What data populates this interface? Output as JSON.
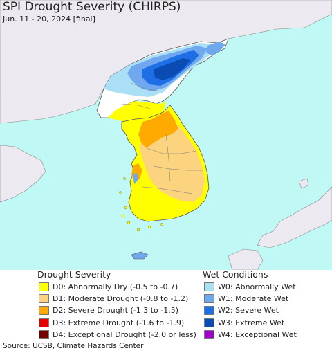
{
  "title": "SPI Drought Severity (CHIRPS)",
  "subtitle": "Jun. 11 - 20, 2024 [final]",
  "legend": {
    "drought_title": "Drought Severity",
    "drought": [
      {
        "label": "D0: Abnormally Dry (-0.5 to -0.7)",
        "color": "#ffff00"
      },
      {
        "label": "D1: Moderate Drought (-0.8 to -1.2)",
        "color": "#fcd37f"
      },
      {
        "label": "D2: Severe Drought (-1.3 to -1.5)",
        "color": "#ffaa00"
      },
      {
        "label": "D3: Extreme Drought (-1.6 to -1.9)",
        "color": "#e60000"
      },
      {
        "label": "D4: Exceptional Drought (-2.0 or less)",
        "color": "#730000"
      }
    ],
    "wet_title": "Wet Conditions",
    "wet": [
      {
        "label": "W0: Abnormally Wet",
        "color": "#aadff5"
      },
      {
        "label": "W1: Moderate Wet",
        "color": "#6fa8ee"
      },
      {
        "label": "W2: Severe Wet",
        "color": "#1e6fe6"
      },
      {
        "label": "W3: Extreme Wet",
        "color": "#0a4cb4"
      },
      {
        "label": "W4: Exceptional Wet",
        "color": "#a000c8"
      }
    ]
  },
  "colors": {
    "sea": "#bff8f5",
    "land_outside": "#eceaf0",
    "land_neutral": "#ffffff",
    "border": "#555555"
  },
  "source": "Source: UCSB, Climate Hazards Center"
}
